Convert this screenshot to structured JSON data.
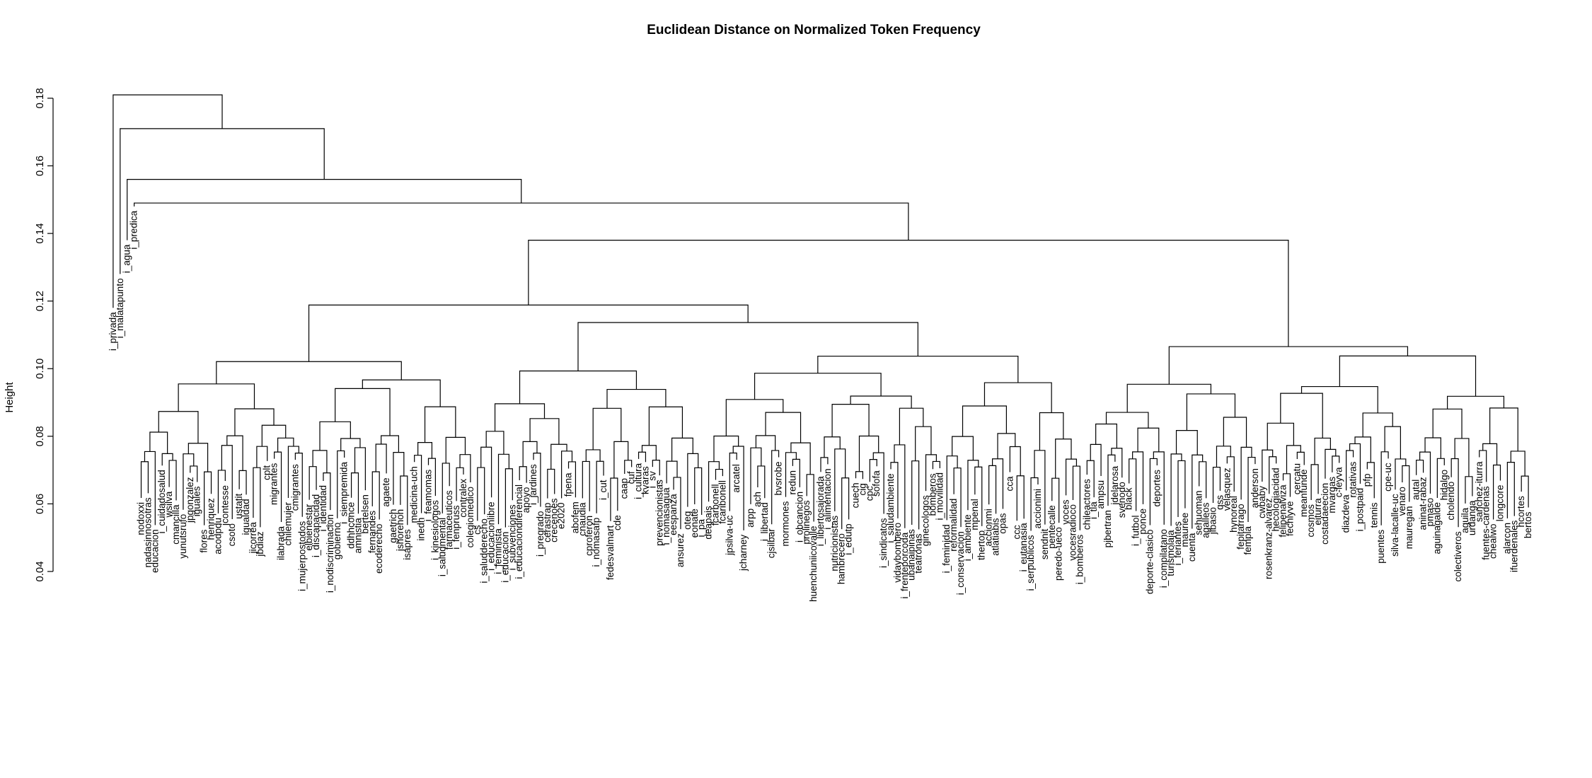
{
  "chart_data": {
    "type": "dendrogram",
    "title": "Euclidean Distance on Normalized Token Frequency",
    "ylabel": "Height",
    "ylim": [
      0.04,
      0.185
    ],
    "yticks": [
      "0.04",
      "0.06",
      "0.08",
      "0.10",
      "0.12",
      "0.14",
      "0.16",
      "0.18"
    ],
    "line_color": "#000000",
    "top_merges": [
      {
        "left": "i_privada",
        "right": "rest",
        "height": 0.181
      },
      {
        "left": "i_malatapunto",
        "right": "rest",
        "height": 0.171
      },
      {
        "left": "i_predica",
        "right": "rest",
        "height": 0.156
      },
      {
        "left": "i_agua",
        "right": "rest",
        "height": 0.149
      },
      {
        "left": "left-cluster",
        "right": "right-cluster",
        "height": 0.138
      },
      {
        "left": "right-sub-a",
        "right": "right-sub-b",
        "height": 0.131
      },
      {
        "left": "right-sub-a1",
        "right": "right-sub-a2",
        "height": 0.13
      },
      {
        "left": "deportes-cluster",
        "right": "tail-cluster",
        "height": 0.129
      }
    ],
    "leaves": [
      "i_privada",
      "i_malatapunto",
      "i_agua",
      "i_predica",
      "nodoxxi",
      "nadasinnosotras",
      "educacion",
      "i_cuidadosalud",
      "wsilva",
      "cmancilla",
      "yunutsrufo",
      "jpgonzalez",
      "iguales",
      "flores",
      "henriquez",
      "acodpdu",
      "jcontesse",
      "csoto",
      "ustatit",
      "igualdad",
      "jicorrea",
      "jbdiaz",
      "cplt",
      "migrantes",
      "ilabrada",
      "chilemujer",
      "cmigrantes",
      "i_mujerpostodos",
      "elbienestar",
      "i_discapacidad",
      "i_identidad",
      "i_nodiscriminacion",
      "gobierno",
      "i_siempremida",
      "ddhhconce",
      "amnistia",
      "bertelsen",
      "fernandes",
      "ecoderecho",
      "agaete",
      "gaetrich",
      "jshorehoh",
      "isapres",
      "medicina-uch",
      "inedh",
      "i_feamomas",
      "i_kinesiologos",
      "i_saludmental",
      "farmaceuticos",
      "i_fenpruss",
      "contralex",
      "colegiomedico",
      "cs",
      "i_saludderecho",
      "i_educacionlibre",
      "i_feminista",
      "i_educacion",
      "i_subvenciones",
      "i_educaciondiferencial",
      "apoyo",
      "i_jardines",
      "i_pregrado",
      "cerastrap",
      "crecenoes",
      "e2020",
      "fpena",
      "abofem",
      "cnaudia",
      "cproferon",
      "i_nomasafp",
      "i_cut",
      "fedesvalmart",
      "cde",
      "caap",
      "cuf",
      "i_cultura",
      "kvaras",
      "i_sv",
      "prevencionistas",
      "i_nomasagua",
      "eespanza",
      "ansurez",
      "oteg",
      "eonate",
      "i_pa",
      "deapais",
      "fcarbonell",
      "fcaribonell",
      "jpsilva-uc",
      "arcatel",
      "jcharney",
      "arpp",
      "ach",
      "i_libertad",
      "cjsilbar",
      "bvsrobe",
      "mormones",
      "redun",
      "i_obcancion",
      "prolinegos",
      "huenchuniicovalle",
      "i_libertosajorada",
      "i_alimentacion",
      "nutricionistas",
      "hambrecero",
      "i_edutp",
      "cuech",
      "cig",
      "cpc",
      "sofofa",
      "i_sindicatos",
      "i_saludambiente",
      "vidaybombero",
      "i_frenteporcoda",
      "ubanaipinas",
      "teatronas",
      "ginecologos",
      "bomberos",
      "i_movilidad",
      "i_feminidad",
      "reformalidad",
      "i_conservacion",
      "i_ambiente",
      "mpenal",
      "thertop",
      "accionmi",
      "atlatiabis",
      "opas",
      "cca",
      "ccc",
      "i_eutanasia",
      "i_serpublicos",
      "accionimi",
      "sendnit",
      "pentecalle",
      "peredo-ueco",
      "voces",
      "vocesradioco",
      "i_bomberos",
      "chileactores",
      "i_tla",
      "ampsu",
      "pjbertran",
      "jdelarosa",
      "svenodo",
      "black",
      "i_futbol",
      "ponce",
      "deporte-clasico",
      "deportes",
      "i_compilatano",
      "turismolaja",
      "i_feriantes",
      "mauriee",
      "cuenta",
      "sehuoman",
      "agalleos",
      "jibasio",
      "qss",
      "velasquez",
      "hynoreal",
      "fepitarrago",
      "fempla",
      "anderson",
      "cwbaby",
      "rosenkranz-alvarez",
      "hecologiacidad",
      "felipenalviza",
      "fechlyve",
      "cercatu",
      "meanfunde",
      "cosmos",
      "eiturra",
      "costadaeecion",
      "mvargas",
      "c-leyva",
      "diazdeva",
      "rotativas",
      "i_postpaid",
      "pfp",
      "tennis",
      "puentes",
      "cpe-uc",
      "silva-lacalle-uc",
      "venaro",
      "mauregan",
      "autal",
      "aninat-rabaz",
      "pmaso",
      "aguinagalde",
      "hidalgo",
      "cholendo",
      "colectiveros",
      "aguila",
      "urdanga",
      "sanchez-iturra",
      "fuentes-cardenas",
      "chealwo",
      "longcore",
      "alarcon",
      "ifuerdenales",
      "hcortes",
      "bertos"
    ]
  }
}
